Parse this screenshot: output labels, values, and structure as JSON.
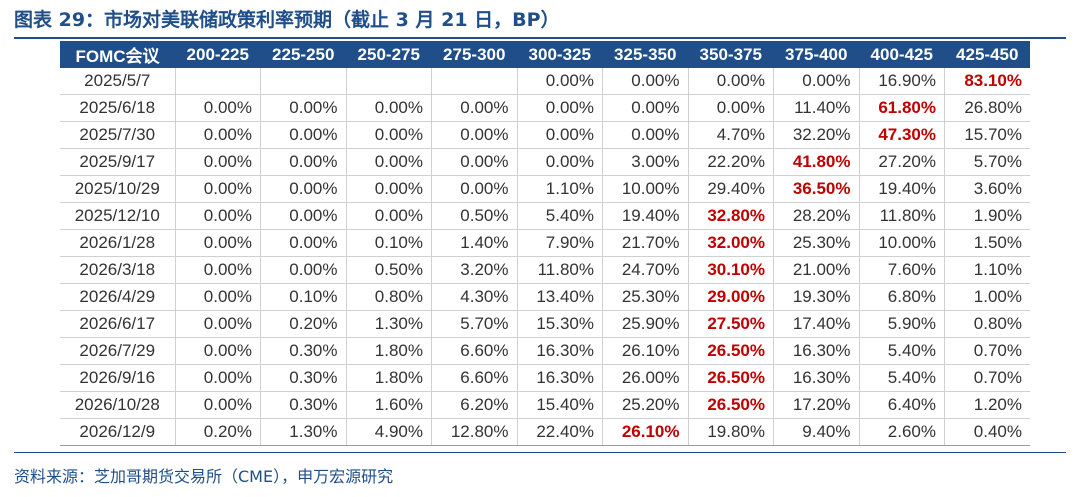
{
  "title": "图表 29：市场对美联储政策利率预期（截止 3 月 21 日，BP）",
  "source": "资料来源：芝加哥期货交易所（CME），申万宏源研究",
  "colors": {
    "header_bg": "#1f4e89",
    "highlight": "#c00000",
    "title": "#1f4e89"
  },
  "table": {
    "headers": [
      "FOMC会议",
      "200-225",
      "225-250",
      "250-275",
      "275-300",
      "300-325",
      "325-350",
      "350-375",
      "375-400",
      "400-425",
      "425-450"
    ],
    "rows": [
      [
        "2025/5/7",
        "",
        "",
        "",
        "",
        "0.00%",
        "0.00%",
        "0.00%",
        "0.00%",
        "16.90%",
        "83.10%"
      ],
      [
        "2025/6/18",
        "0.00%",
        "0.00%",
        "0.00%",
        "0.00%",
        "0.00%",
        "0.00%",
        "0.00%",
        "11.40%",
        "61.80%",
        "26.80%"
      ],
      [
        "2025/7/30",
        "0.00%",
        "0.00%",
        "0.00%",
        "0.00%",
        "0.00%",
        "0.00%",
        "4.70%",
        "32.20%",
        "47.30%",
        "15.70%"
      ],
      [
        "2025/9/17",
        "0.00%",
        "0.00%",
        "0.00%",
        "0.00%",
        "0.00%",
        "3.00%",
        "22.20%",
        "41.80%",
        "27.20%",
        "5.70%"
      ],
      [
        "2025/10/29",
        "0.00%",
        "0.00%",
        "0.00%",
        "0.00%",
        "1.10%",
        "10.00%",
        "29.40%",
        "36.50%",
        "19.40%",
        "3.60%"
      ],
      [
        "2025/12/10",
        "0.00%",
        "0.00%",
        "0.00%",
        "0.50%",
        "5.40%",
        "19.40%",
        "32.80%",
        "28.20%",
        "11.80%",
        "1.90%"
      ],
      [
        "2026/1/28",
        "0.00%",
        "0.00%",
        "0.10%",
        "1.40%",
        "7.90%",
        "21.70%",
        "32.00%",
        "25.30%",
        "10.00%",
        "1.50%"
      ],
      [
        "2026/3/18",
        "0.00%",
        "0.00%",
        "0.50%",
        "3.20%",
        "11.80%",
        "24.70%",
        "30.10%",
        "21.00%",
        "7.60%",
        "1.10%"
      ],
      [
        "2026/4/29",
        "0.00%",
        "0.10%",
        "0.80%",
        "4.30%",
        "13.40%",
        "25.30%",
        "29.00%",
        "19.30%",
        "6.80%",
        "1.00%"
      ],
      [
        "2026/6/17",
        "0.00%",
        "0.20%",
        "1.30%",
        "5.70%",
        "15.30%",
        "25.90%",
        "27.50%",
        "17.40%",
        "5.90%",
        "0.80%"
      ],
      [
        "2026/7/29",
        "0.00%",
        "0.30%",
        "1.80%",
        "6.60%",
        "16.30%",
        "26.10%",
        "26.50%",
        "16.30%",
        "5.40%",
        "0.70%"
      ],
      [
        "2026/9/16",
        "0.00%",
        "0.30%",
        "1.80%",
        "6.60%",
        "16.30%",
        "26.00%",
        "26.50%",
        "16.30%",
        "5.40%",
        "0.70%"
      ],
      [
        "2026/10/28",
        "0.00%",
        "0.30%",
        "1.60%",
        "6.20%",
        "15.40%",
        "25.20%",
        "26.50%",
        "17.20%",
        "6.40%",
        "1.20%"
      ],
      [
        "2026/12/9",
        "0.20%",
        "1.30%",
        "4.90%",
        "12.80%",
        "22.40%",
        "26.10%",
        "19.80%",
        "9.40%",
        "2.60%",
        "0.40%"
      ]
    ],
    "highlighted_cells": [
      [
        0,
        10
      ],
      [
        1,
        9
      ],
      [
        2,
        9
      ],
      [
        3,
        8
      ],
      [
        4,
        8
      ],
      [
        5,
        7
      ],
      [
        6,
        7
      ],
      [
        7,
        7
      ],
      [
        8,
        7
      ],
      [
        9,
        7
      ],
      [
        10,
        7
      ],
      [
        11,
        7
      ],
      [
        12,
        7
      ],
      [
        13,
        6
      ]
    ]
  }
}
